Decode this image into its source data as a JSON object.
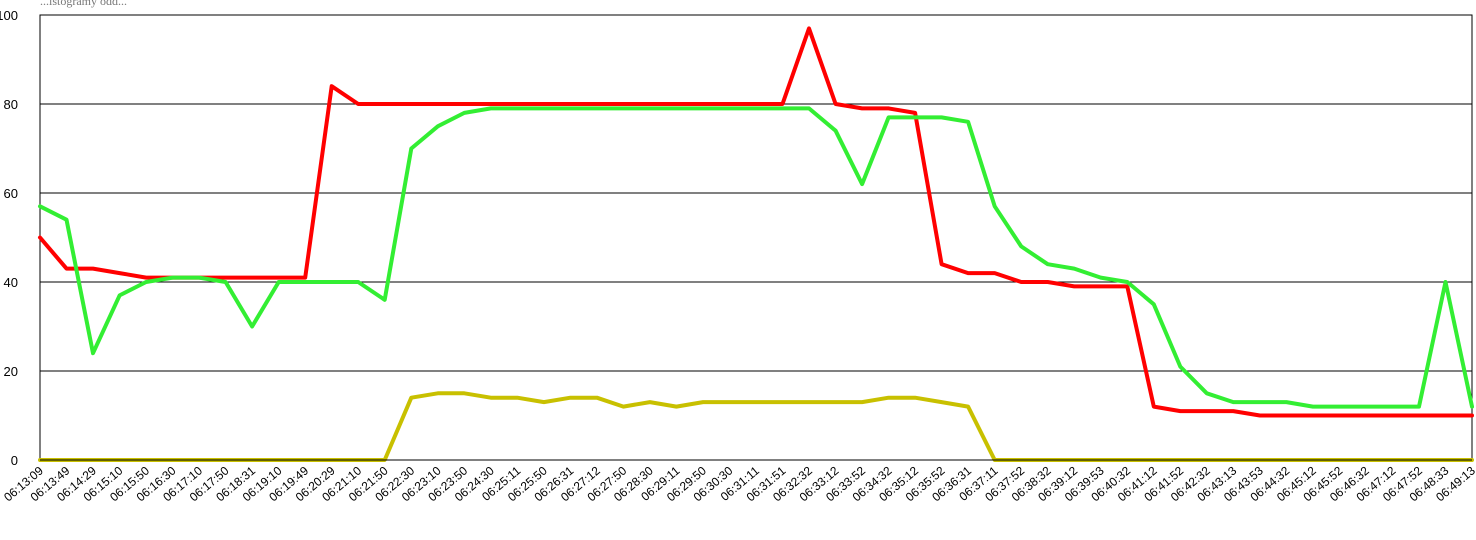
{
  "chart_data": {
    "type": "line",
    "title_fragment": "...istogramy odd...",
    "ylim": [
      0,
      100
    ],
    "yticks": [
      "0",
      "20",
      "40",
      "60",
      "80",
      "100"
    ],
    "grid": true,
    "legend": "none",
    "x": [
      "06:13:09",
      "06:13:49",
      "06:14:29",
      "06:15:10",
      "06:15:50",
      "06:16:30",
      "06:17:10",
      "06:17:50",
      "06:18:31",
      "06:19:10",
      "06:19:49",
      "06:20:29",
      "06:21:10",
      "06:21:50",
      "06:22:30",
      "06:23:10",
      "06:23:50",
      "06:24:30",
      "06:25:11",
      "06:25:50",
      "06:26:31",
      "06:27:12",
      "06:27:50",
      "06:28:30",
      "06:29:11",
      "06:29:50",
      "06:30:30",
      "06:31:11",
      "06:31:51",
      "06:32:32",
      "06:33:12",
      "06:33:52",
      "06:34:32",
      "06:35:12",
      "06:35:52",
      "06:36:31",
      "06:37:11",
      "06:37:52",
      "06:38:32",
      "06:39:12",
      "06:39:53",
      "06:40:32",
      "06:41:12",
      "06:41:52",
      "06:42:32",
      "06:43:13",
      "06:43:53",
      "06:44:32",
      "06:45:12",
      "06:45:52",
      "06:46:32",
      "06:47:12",
      "06:47:52",
      "06:48:33",
      "06:49:13"
    ],
    "series": [
      {
        "color": "#ff0000",
        "values": [
          50,
          43,
          43,
          42,
          41,
          41,
          41,
          41,
          41,
          41,
          41,
          84,
          80,
          80,
          80,
          80,
          80,
          80,
          80,
          80,
          80,
          80,
          80,
          80,
          80,
          80,
          80,
          80,
          80,
          97,
          80,
          79,
          79,
          78,
          44,
          42,
          42,
          40,
          40,
          39,
          39,
          39,
          12,
          11,
          11,
          11,
          10,
          10,
          10,
          10,
          10,
          10,
          10,
          10,
          10
        ]
      },
      {
        "color": "#33ee33",
        "values": [
          57,
          54,
          24,
          37,
          40,
          41,
          41,
          40,
          30,
          40,
          40,
          40,
          40,
          36,
          70,
          75,
          78,
          79,
          79,
          79,
          79,
          79,
          79,
          79,
          79,
          79,
          79,
          79,
          79,
          79,
          74,
          62,
          77,
          77,
          77,
          76,
          57,
          48,
          44,
          43,
          41,
          40,
          35,
          21,
          15,
          13,
          13,
          13,
          12,
          12,
          12,
          12,
          12,
          40,
          12
        ]
      },
      {
        "color": "#c8c000",
        "values": [
          0,
          0,
          0,
          0,
          0,
          0,
          0,
          0,
          0,
          0,
          0,
          0,
          0,
          0,
          14,
          15,
          15,
          14,
          14,
          13,
          14,
          14,
          12,
          13,
          12,
          13,
          13,
          13,
          13,
          13,
          13,
          13,
          14,
          14,
          13,
          12,
          0,
          0,
          0,
          0,
          0,
          0,
          0,
          0,
          0,
          0,
          0,
          0,
          0,
          0,
          0,
          0,
          0,
          0,
          0
        ]
      }
    ]
  }
}
